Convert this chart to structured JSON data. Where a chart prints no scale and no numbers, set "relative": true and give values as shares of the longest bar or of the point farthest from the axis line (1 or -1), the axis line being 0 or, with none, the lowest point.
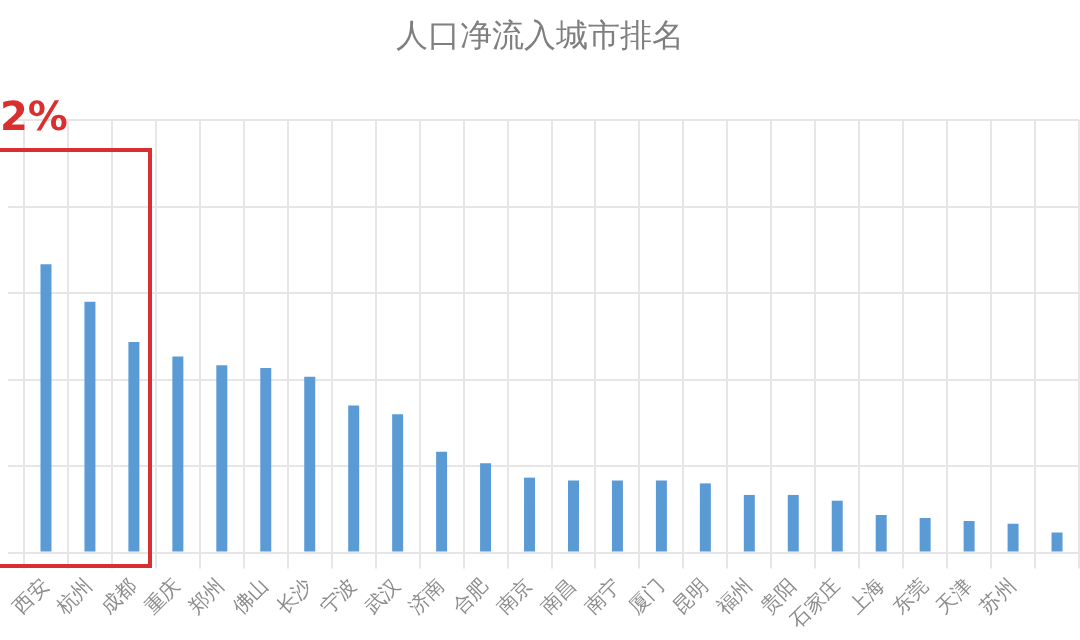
{
  "chart_data": {
    "type": "bar",
    "title": "人口净流入城市排名",
    "relative": true,
    "grid": true,
    "legend": false,
    "categories": [
      "西安",
      "杭州",
      "成都",
      "重庆",
      "郑州",
      "佛山",
      "长沙",
      "宁波",
      "武汉",
      "济南",
      "合肥",
      "南京",
      "南昌",
      "南宁",
      "厦门",
      "昆明",
      "福州",
      "贵阳",
      "石家庄",
      "上海",
      "东莞",
      "天津",
      "苏州",
      null
    ],
    "series": [
      {
        "color": "#5b9bd5",
        "values": [
          1,
          0.87,
          0.73,
          0.68,
          0.65,
          0.64,
          0.61,
          0.51,
          0.48,
          0.35,
          0.31,
          0.26,
          0.25,
          0.25,
          0.25,
          0.24,
          0.2,
          0.2,
          0.18,
          0.13,
          0.12,
          0.11,
          0.1,
          0.07
        ]
      }
    ],
    "annotations": [
      "2%"
    ]
  }
}
